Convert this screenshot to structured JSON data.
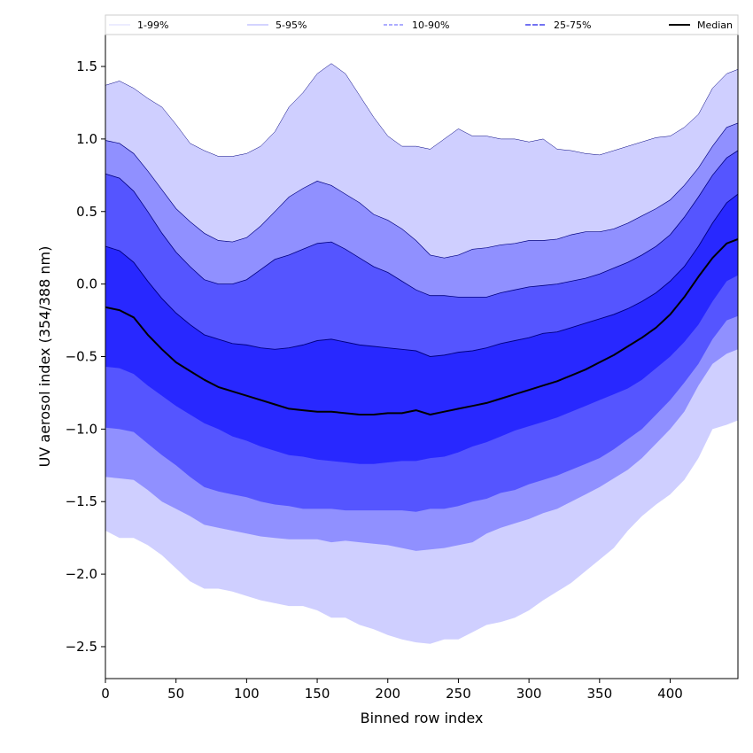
{
  "chart_data": {
    "type": "area",
    "title": "",
    "xlabel": "Binned row index",
    "ylabel": "UV aerosol index (354/388 nm)",
    "xlim": [
      0,
      448
    ],
    "ylim": [
      -2.72,
      1.72
    ],
    "xticks": [
      0,
      50,
      100,
      150,
      200,
      250,
      300,
      350,
      400
    ],
    "yticks": [
      -2.5,
      -2.0,
      -1.5,
      -1.0,
      -0.5,
      0.0,
      0.5,
      1.0,
      1.5
    ],
    "ytick_labels": [
      "−2.5",
      "−2.0",
      "−1.5",
      "−1.0",
      "−0.5",
      "0.0",
      "0.5",
      "1.0",
      "1.5"
    ],
    "x": [
      0,
      10,
      20,
      30,
      40,
      50,
      60,
      70,
      80,
      90,
      100,
      110,
      120,
      130,
      140,
      150,
      160,
      170,
      180,
      190,
      200,
      210,
      220,
      230,
      240,
      250,
      260,
      270,
      280,
      290,
      300,
      310,
      320,
      330,
      340,
      350,
      360,
      370,
      380,
      390,
      400,
      410,
      420,
      430,
      440,
      448
    ],
    "legend": {
      "position": "top-center",
      "entries": [
        "1-99%",
        "5-95%",
        "10-90%",
        "25-75%",
        "Median"
      ]
    },
    "bands": [
      {
        "name": "1-99%",
        "color": "#cfcfff",
        "line_color": "#000080",
        "lower": [
          -1.7,
          -1.75,
          -1.75,
          -1.8,
          -1.87,
          -1.96,
          -2.05,
          -2.1,
          -2.1,
          -2.12,
          -2.15,
          -2.18,
          -2.2,
          -2.22,
          -2.22,
          -2.25,
          -2.3,
          -2.3,
          -2.35,
          -2.38,
          -2.42,
          -2.45,
          -2.47,
          -2.48,
          -2.45,
          -2.45,
          -2.4,
          -2.35,
          -2.33,
          -2.3,
          -2.25,
          -2.18,
          -2.12,
          -2.06,
          -1.98,
          -1.9,
          -1.82,
          -1.7,
          -1.6,
          -1.52,
          -1.45,
          -1.35,
          -1.2,
          -1.0,
          -0.97,
          -0.94
        ],
        "upper": [
          1.37,
          1.4,
          1.35,
          1.28,
          1.22,
          1.1,
          0.97,
          0.92,
          0.88,
          0.88,
          0.9,
          0.95,
          1.05,
          1.22,
          1.32,
          1.45,
          1.52,
          1.45,
          1.3,
          1.15,
          1.02,
          0.95,
          0.95,
          0.93,
          1.0,
          1.07,
          1.02,
          1.02,
          1.0,
          1.0,
          0.98,
          1.0,
          0.93,
          0.92,
          0.9,
          0.89,
          0.92,
          0.95,
          0.98,
          1.01,
          1.02,
          1.08,
          1.17,
          1.35,
          1.45,
          1.48
        ]
      },
      {
        "name": "5-95%",
        "color": "#9090ff",
        "line_color": "#000080",
        "lower": [
          -1.33,
          -1.34,
          -1.35,
          -1.42,
          -1.5,
          -1.55,
          -1.6,
          -1.66,
          -1.68,
          -1.7,
          -1.72,
          -1.74,
          -1.75,
          -1.76,
          -1.76,
          -1.76,
          -1.78,
          -1.77,
          -1.78,
          -1.79,
          -1.8,
          -1.82,
          -1.84,
          -1.83,
          -1.82,
          -1.8,
          -1.78,
          -1.72,
          -1.68,
          -1.65,
          -1.62,
          -1.58,
          -1.55,
          -1.5,
          -1.45,
          -1.4,
          -1.34,
          -1.28,
          -1.2,
          -1.1,
          -1.0,
          -0.88,
          -0.7,
          -0.55,
          -0.48,
          -0.45
        ],
        "upper": [
          0.99,
          0.97,
          0.9,
          0.78,
          0.65,
          0.52,
          0.43,
          0.35,
          0.3,
          0.29,
          0.32,
          0.4,
          0.5,
          0.6,
          0.66,
          0.71,
          0.68,
          0.62,
          0.56,
          0.48,
          0.44,
          0.38,
          0.3,
          0.2,
          0.18,
          0.2,
          0.24,
          0.25,
          0.27,
          0.28,
          0.3,
          0.3,
          0.31,
          0.34,
          0.36,
          0.36,
          0.38,
          0.42,
          0.47,
          0.52,
          0.58,
          0.68,
          0.8,
          0.95,
          1.08,
          1.11
        ]
      },
      {
        "name": "10-90%",
        "color": "#5555ff",
        "line_color": "#000080",
        "lower": [
          -0.99,
          -1.0,
          -1.02,
          -1.1,
          -1.18,
          -1.25,
          -1.33,
          -1.4,
          -1.43,
          -1.45,
          -1.47,
          -1.5,
          -1.52,
          -1.53,
          -1.55,
          -1.55,
          -1.55,
          -1.56,
          -1.56,
          -1.56,
          -1.56,
          -1.56,
          -1.57,
          -1.55,
          -1.55,
          -1.53,
          -1.5,
          -1.48,
          -1.44,
          -1.42,
          -1.38,
          -1.35,
          -1.32,
          -1.28,
          -1.24,
          -1.2,
          -1.14,
          -1.07,
          -1.0,
          -0.9,
          -0.8,
          -0.68,
          -0.55,
          -0.38,
          -0.25,
          -0.22
        ],
        "upper": [
          0.76,
          0.73,
          0.64,
          0.5,
          0.35,
          0.22,
          0.12,
          0.03,
          0.0,
          0.0,
          0.03,
          0.1,
          0.17,
          0.2,
          0.24,
          0.28,
          0.29,
          0.24,
          0.18,
          0.12,
          0.08,
          0.02,
          -0.04,
          -0.08,
          -0.08,
          -0.09,
          -0.09,
          -0.09,
          -0.06,
          -0.04,
          -0.02,
          -0.01,
          0.0,
          0.02,
          0.04,
          0.07,
          0.11,
          0.15,
          0.2,
          0.26,
          0.34,
          0.46,
          0.6,
          0.75,
          0.87,
          0.92
        ]
      },
      {
        "name": "25-75%",
        "color": "#2828ff",
        "line_color": "#000080",
        "lower": [
          -0.57,
          -0.58,
          -0.62,
          -0.7,
          -0.77,
          -0.84,
          -0.9,
          -0.96,
          -1.0,
          -1.05,
          -1.08,
          -1.12,
          -1.15,
          -1.18,
          -1.19,
          -1.21,
          -1.22,
          -1.23,
          -1.24,
          -1.24,
          -1.23,
          -1.22,
          -1.22,
          -1.2,
          -1.19,
          -1.16,
          -1.12,
          -1.09,
          -1.05,
          -1.01,
          -0.98,
          -0.95,
          -0.92,
          -0.88,
          -0.84,
          -0.8,
          -0.76,
          -0.72,
          -0.66,
          -0.58,
          -0.5,
          -0.4,
          -0.28,
          -0.12,
          0.02,
          0.06
        ],
        "upper": [
          0.26,
          0.23,
          0.15,
          0.02,
          -0.1,
          -0.2,
          -0.28,
          -0.35,
          -0.38,
          -0.41,
          -0.42,
          -0.44,
          -0.45,
          -0.44,
          -0.42,
          -0.39,
          -0.38,
          -0.4,
          -0.42,
          -0.43,
          -0.44,
          -0.45,
          -0.46,
          -0.5,
          -0.49,
          -0.47,
          -0.46,
          -0.44,
          -0.41,
          -0.39,
          -0.37,
          -0.34,
          -0.33,
          -0.3,
          -0.27,
          -0.24,
          -0.21,
          -0.17,
          -0.12,
          -0.06,
          0.02,
          0.12,
          0.26,
          0.42,
          0.56,
          0.62
        ]
      }
    ],
    "series": [
      {
        "name": "Median",
        "color": "#000000",
        "values": [
          -0.16,
          -0.18,
          -0.23,
          -0.35,
          -0.45,
          -0.54,
          -0.6,
          -0.66,
          -0.71,
          -0.74,
          -0.77,
          -0.8,
          -0.83,
          -0.86,
          -0.87,
          -0.88,
          -0.88,
          -0.89,
          -0.9,
          -0.9,
          -0.89,
          -0.89,
          -0.87,
          -0.9,
          -0.88,
          -0.86,
          -0.84,
          -0.82,
          -0.79,
          -0.76,
          -0.73,
          -0.7,
          -0.67,
          -0.63,
          -0.59,
          -0.54,
          -0.49,
          -0.43,
          -0.37,
          -0.3,
          -0.21,
          -0.09,
          0.05,
          0.18,
          0.28,
          0.31
        ]
      }
    ]
  }
}
